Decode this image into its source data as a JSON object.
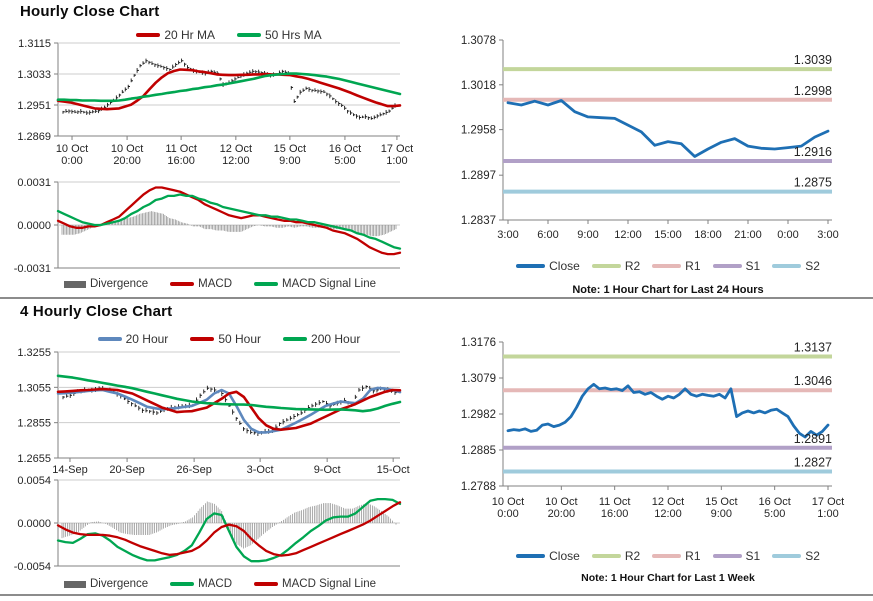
{
  "chart_data": [
    {
      "id": "hourly_price",
      "kind": "price",
      "type": "candlestick",
      "title": "Hourly Close Chart",
      "yticks": [
        "1.3115",
        "1.3033",
        "1.2951",
        "1.2869"
      ],
      "xticks": [
        [
          "10 Oct",
          "0:00"
        ],
        [
          "10 Oct",
          "20:00"
        ],
        [
          "11 Oct",
          "16:00"
        ],
        [
          "12 Oct",
          "12:00"
        ],
        [
          "15 Oct",
          "9:00"
        ],
        [
          "16 Oct",
          "5:00"
        ],
        [
          "17 Oct",
          "1:00"
        ]
      ],
      "candle_color": "#1A1A1A",
      "candles": [
        1.2933,
        1.2935,
        1.2932,
        1.2934,
        1.293,
        1.2933,
        1.2936,
        1.2945,
        1.2958,
        1.297,
        1.2985,
        1.3,
        1.303,
        1.3055,
        1.3068,
        1.306,
        1.3055,
        1.305,
        1.3045,
        1.3058,
        1.3068,
        1.305,
        1.3042,
        1.3038,
        1.3035,
        1.304,
        1.3035,
        1.3005,
        1.301,
        1.302,
        1.3028,
        1.3035,
        1.304,
        1.3038,
        1.3035,
        1.303,
        1.3032,
        1.304,
        1.3035,
        1.296,
        1.2985,
        1.2995,
        1.299,
        1.2988,
        1.2985,
        1.2975,
        1.296,
        1.295,
        1.2935,
        1.2925,
        1.2918,
        1.292,
        1.2915,
        1.2922,
        1.2928,
        1.2935,
        1.295
      ],
      "series": [
        {
          "name": "20 Hr MA",
          "color": "#C00000",
          "values": [
            1.2962,
            1.296,
            1.2958,
            1.2954,
            1.295,
            1.2946,
            1.2942,
            1.2941,
            1.294,
            1.2941,
            1.2942,
            1.2947,
            1.2952,
            1.2963,
            1.2975,
            1.2993,
            1.301,
            1.3024,
            1.3035,
            1.3041,
            1.3045,
            1.3044,
            1.3043,
            1.304,
            1.3038,
            1.3035,
            1.3032,
            1.3031,
            1.303,
            1.303,
            1.3031,
            1.3031,
            1.3032,
            1.3032,
            1.3033,
            1.3032,
            1.3032,
            1.3031,
            1.303,
            1.3027,
            1.3024,
            1.302,
            1.3015,
            1.301,
            1.3005,
            1.3,
            1.2995,
            1.2989,
            1.2983,
            1.2976,
            1.297,
            1.2964,
            1.2958,
            1.2953,
            1.2948,
            1.2948,
            1.295
          ]
        },
        {
          "name": "50 Hrs MA",
          "color": "#00A651",
          "values": [
            1.2965,
            1.2965,
            1.2964,
            1.2964,
            1.2963,
            1.2963,
            1.2963,
            1.2962,
            1.2962,
            1.2962,
            1.2963,
            1.2965,
            1.2968,
            1.297,
            1.2973,
            1.2975,
            1.2978,
            1.298,
            1.2983,
            1.2985,
            1.2988,
            1.299,
            1.2993,
            1.2995,
            1.2998,
            1.3,
            1.3003,
            1.3005,
            1.3008,
            1.3011,
            1.3014,
            1.3017,
            1.302,
            1.3024,
            1.3028,
            1.303,
            1.3032,
            1.3033,
            1.3034,
            1.3034,
            1.3033,
            1.3032,
            1.303,
            1.3028,
            1.3026,
            1.3023,
            1.302,
            1.3016,
            1.3012,
            1.3008,
            1.3004,
            1.3,
            1.2996,
            1.2992,
            1.2988,
            1.2984,
            1.298
          ]
        }
      ]
    },
    {
      "id": "hourly_macd",
      "kind": "macd",
      "type": "bar+line",
      "yticks": [
        "0.0031",
        "0.0000",
        "-0.0031"
      ],
      "bar_color": "#8A8A8A",
      "series": [
        {
          "name": "Divergence",
          "color": "#666666",
          "swatch": "bar"
        },
        {
          "name": "MACD",
          "color": "#C00000",
          "values": [
            0.0003,
            0.0001,
            -0.0001,
            -0.0002,
            -0.0002,
            -0.0001,
            -0.0001,
            0.0,
            0.0002,
            0.0004,
            0.0006,
            0.001,
            0.0014,
            0.0018,
            0.0022,
            0.0025,
            0.0027,
            0.0027,
            0.0026,
            0.0025,
            0.0024,
            0.0022,
            0.002,
            0.0018,
            0.0015,
            0.0013,
            0.0011,
            0.0009,
            0.0007,
            0.0006,
            0.0005,
            0.0006,
            0.0007,
            0.0007,
            0.0006,
            0.0005,
            0.0004,
            0.0003,
            0.0003,
            0.0002,
            0.0002,
            0.0001,
            0.0,
            -0.0001,
            -0.0002,
            -0.0004,
            -0.0005,
            -0.0006,
            -0.0008,
            -0.001,
            -0.0013,
            -0.0016,
            -0.0018,
            -0.002,
            -0.0021,
            -0.0021,
            -0.002
          ]
        },
        {
          "name": "MACD Signal Line",
          "color": "#00A651",
          "values": [
            0.001,
            0.0008,
            0.0006,
            0.0004,
            0.0002,
            0.0001,
            0.0,
            0.0,
            0.0001,
            0.0002,
            0.0003,
            0.0005,
            0.0008,
            0.001,
            0.0013,
            0.0015,
            0.0018,
            0.0019,
            0.0021,
            0.0021,
            0.0022,
            0.0021,
            0.0021,
            0.0019,
            0.0018,
            0.0016,
            0.0015,
            0.0013,
            0.0012,
            0.0011,
            0.001,
            0.0009,
            0.0008,
            0.0007,
            0.0007,
            0.0006,
            0.0006,
            0.0005,
            0.0004,
            0.0004,
            0.0003,
            0.0002,
            0.0002,
            0.0001,
            0.0,
            -0.0001,
            -0.0002,
            -0.0003,
            -0.0004,
            -0.0006,
            -0.0007,
            -0.0009,
            -0.001,
            -0.0012,
            -0.0014,
            -0.0016,
            -0.0017
          ]
        }
      ]
    },
    {
      "id": "pivot_24h",
      "kind": "pivot",
      "type": "line",
      "note": "Note: 1 Hour Chart for Last 24 Hours",
      "yticks": [
        "1.3078",
        "1.3018",
        "1.2958",
        "1.2897",
        "1.2837"
      ],
      "xticks": [
        "3:00",
        "6:00",
        "9:00",
        "12:00",
        "15:00",
        "18:00",
        "21:00",
        "0:00",
        "3:00"
      ],
      "series": [
        {
          "name": "Close",
          "color": "#1E6FB4",
          "values": [
            1.2994,
            1.2991,
            1.2996,
            1.2991,
            1.2997,
            1.2982,
            1.2975,
            1.2974,
            1.2973,
            1.2964,
            1.2955,
            1.2937,
            1.2942,
            1.2939,
            1.2922,
            1.2932,
            1.2941,
            1.2946,
            1.2936,
            1.2933,
            1.2932,
            1.2934,
            1.2936,
            1.2948,
            1.2956
          ]
        },
        {
          "name": "R2",
          "color": "#C3D69B",
          "value": 1.3039,
          "label": "1.3039"
        },
        {
          "name": "R1",
          "color": "#E5B8B7",
          "value": 1.2998,
          "label": "1.2998"
        },
        {
          "name": "S1",
          "color": "#B1A0C7",
          "value": 1.2916,
          "label": "1.2916"
        },
        {
          "name": "S2",
          "color": "#9FCBDC",
          "value": 1.2875,
          "label": "1.2875"
        }
      ]
    },
    {
      "id": "four_price",
      "kind": "price",
      "type": "candlestick",
      "title": "4 Hourly Close Chart",
      "yticks": [
        "1.3255",
        "1.3055",
        "1.2855",
        "1.2655"
      ],
      "xticks": [
        "14-Sep",
        "20-Sep",
        "26-Sep",
        "3-Oct",
        "9-Oct",
        "15-Oct"
      ],
      "candle_color": "#1A1A1A",
      "candles": [
        1.3,
        1.301,
        1.303,
        1.304,
        1.3038,
        1.305,
        1.3045,
        1.303,
        1.3005,
        1.2975,
        1.295,
        1.2925,
        1.292,
        1.291,
        1.293,
        1.294,
        1.2945,
        1.295,
        1.2955,
        1.301,
        1.305,
        1.304,
        1.302,
        1.295,
        1.288,
        1.282,
        1.28,
        1.2795,
        1.2805,
        1.281,
        1.285,
        1.287,
        1.289,
        1.291,
        1.294,
        1.296,
        1.2975,
        1.295,
        1.2965,
        1.298,
        1.296,
        1.304,
        1.306,
        1.3035,
        1.3045,
        1.304,
        1.3025
      ],
      "series": [
        {
          "name": "20 Hour",
          "color": "#5E88BD",
          "values": [
            1.302,
            1.3022,
            1.3025,
            1.303,
            1.3035,
            1.3038,
            1.304,
            1.303,
            1.302,
            1.3003,
            1.2985,
            1.2965,
            1.2945,
            1.2937,
            1.293,
            1.2934,
            1.2938,
            1.2944,
            1.295,
            1.2967,
            1.2985,
            1.302,
            1.304,
            1.302,
            1.295,
            1.287,
            1.282,
            1.28,
            1.28,
            1.2807,
            1.2815,
            1.2835,
            1.2855,
            1.2877,
            1.29,
            1.2925,
            1.295,
            1.2963,
            1.2975,
            1.297,
            1.2965,
            1.299,
            1.304,
            1.3052,
            1.3048,
            1.304,
            1.3028
          ]
        },
        {
          "name": "50 Hour",
          "color": "#C00000",
          "values": [
            1.303,
            1.3032,
            1.3035,
            1.3038,
            1.304,
            1.3043,
            1.3045,
            1.3043,
            1.304,
            1.303,
            1.302,
            1.3,
            1.298,
            1.296,
            1.294,
            1.2928,
            1.2915,
            1.2918,
            1.292,
            1.293,
            1.294,
            1.2965,
            1.299,
            1.302,
            1.303,
            1.3,
            1.294,
            1.288,
            1.284,
            1.282,
            1.2815,
            1.282,
            1.2825,
            1.2838,
            1.285,
            1.287,
            1.289,
            1.291,
            1.293,
            1.2945,
            1.296,
            1.298,
            1.3,
            1.3015,
            1.303,
            1.304,
            1.3038
          ]
        },
        {
          "name": "200 Hour",
          "color": "#00A651",
          "values": [
            1.312,
            1.3115,
            1.311,
            1.3103,
            1.3095,
            1.3088,
            1.308,
            1.3073,
            1.3065,
            1.3058,
            1.305,
            1.304,
            1.303,
            1.302,
            1.301,
            1.3,
            1.299,
            1.2983,
            1.2975,
            1.297,
            1.2965,
            1.2963,
            1.296,
            1.2959,
            1.2958,
            1.2957,
            1.2955,
            1.295,
            1.2945,
            1.2942,
            1.2938,
            1.2935,
            1.2932,
            1.2931,
            1.293,
            1.2929,
            1.2928,
            1.2929,
            1.293,
            1.2928,
            1.2925,
            1.292,
            1.2925,
            1.2935,
            1.295,
            1.2962,
            1.2972
          ]
        }
      ]
    },
    {
      "id": "four_macd",
      "kind": "macd",
      "type": "bar+line",
      "yticks": [
        "0.0054",
        "0.0000",
        "-0.0054"
      ],
      "bar_color": "#8A8A8A",
      "series": [
        {
          "name": "Divergence",
          "color": "#666666",
          "swatch": "bar"
        },
        {
          "name": "MACD",
          "color": "#00A651",
          "values": [
            -0.0022,
            -0.0024,
            -0.0025,
            -0.002,
            -0.0014,
            -0.0013,
            -0.0016,
            -0.0022,
            -0.003,
            -0.0035,
            -0.004,
            -0.0044,
            -0.0047,
            -0.0047,
            -0.0045,
            -0.0043,
            -0.004,
            -0.0035,
            -0.0028,
            -0.0012,
            0.0005,
            0.0012,
            0.001,
            -0.001,
            -0.003,
            -0.0042,
            -0.0048,
            -0.0048,
            -0.0047,
            -0.0044,
            -0.004,
            -0.0033,
            -0.0025,
            -0.0018,
            -0.001,
            -0.0004,
            0.0003,
            0.0007,
            0.0008,
            0.0008,
            0.0012,
            0.002,
            0.0028,
            0.003,
            0.003,
            0.0029,
            0.0024
          ]
        },
        {
          "name": "MACD Signal Line",
          "color": "#C00000",
          "values": [
            -0.0003,
            -0.0008,
            -0.0012,
            -0.0014,
            -0.0015,
            -0.0015,
            -0.0015,
            -0.0016,
            -0.0018,
            -0.0021,
            -0.0025,
            -0.0029,
            -0.0032,
            -0.0035,
            -0.0038,
            -0.004,
            -0.0039,
            -0.0037,
            -0.0035,
            -0.003,
            -0.0022,
            -0.0012,
            -0.0005,
            -0.0002,
            -0.0004,
            -0.001,
            -0.002,
            -0.0028,
            -0.0035,
            -0.0039,
            -0.0041,
            -0.004,
            -0.0038,
            -0.0034,
            -0.003,
            -0.0026,
            -0.0022,
            -0.0018,
            -0.0014,
            -0.001,
            -0.0006,
            -0.0002,
            0.0003,
            0.0009,
            0.0015,
            0.0021,
            0.0026
          ]
        }
      ]
    },
    {
      "id": "pivot_1w",
      "kind": "pivot",
      "type": "line",
      "note": "Note: 1 Hour Chart for  Last 1 Week",
      "yticks": [
        "1.3176",
        "1.3079",
        "1.2982",
        "1.2885",
        "1.2788"
      ],
      "xticks": [
        [
          "10 Oct",
          "0:00"
        ],
        [
          "10 Oct",
          "20:00"
        ],
        [
          "11 Oct",
          "16:00"
        ],
        [
          "12 Oct",
          "12:00"
        ],
        [
          "15 Oct",
          "9:00"
        ],
        [
          "16 Oct",
          "5:00"
        ],
        [
          "17 Oct",
          "1:00"
        ]
      ],
      "series": [
        {
          "name": "Close",
          "color": "#1E6FB4",
          "values": [
            1.2937,
            1.294,
            1.2938,
            1.2942,
            1.2935,
            1.2938,
            1.2952,
            1.2955,
            1.2948,
            1.2952,
            1.296,
            1.2975,
            1.3,
            1.303,
            1.305,
            1.3062,
            1.305,
            1.3052,
            1.3048,
            1.305,
            1.3045,
            1.3058,
            1.304,
            1.3042,
            1.3035,
            1.304,
            1.303,
            1.3022,
            1.303,
            1.3025,
            1.3035,
            1.305,
            1.3035,
            1.303,
            1.3035,
            1.3032,
            1.303,
            1.3035,
            1.3025,
            1.305,
            1.2975,
            1.2985,
            1.299,
            1.2985,
            1.299,
            1.2985,
            1.2992,
            1.2995,
            1.2985,
            1.2975,
            1.295,
            1.293,
            1.292,
            1.2935,
            1.2925,
            1.2935,
            1.2952
          ]
        },
        {
          "name": "R2",
          "color": "#C3D69B",
          "value": 1.3137,
          "label": "1.3137"
        },
        {
          "name": "R1",
          "color": "#E5B8B7",
          "value": 1.3046,
          "label": "1.3046"
        },
        {
          "name": "S1",
          "color": "#B1A0C7",
          "value": 1.2891,
          "label": "1.2891"
        },
        {
          "name": "S2",
          "color": "#9FCBDC",
          "value": 1.2827,
          "label": "1.2827"
        }
      ]
    }
  ]
}
